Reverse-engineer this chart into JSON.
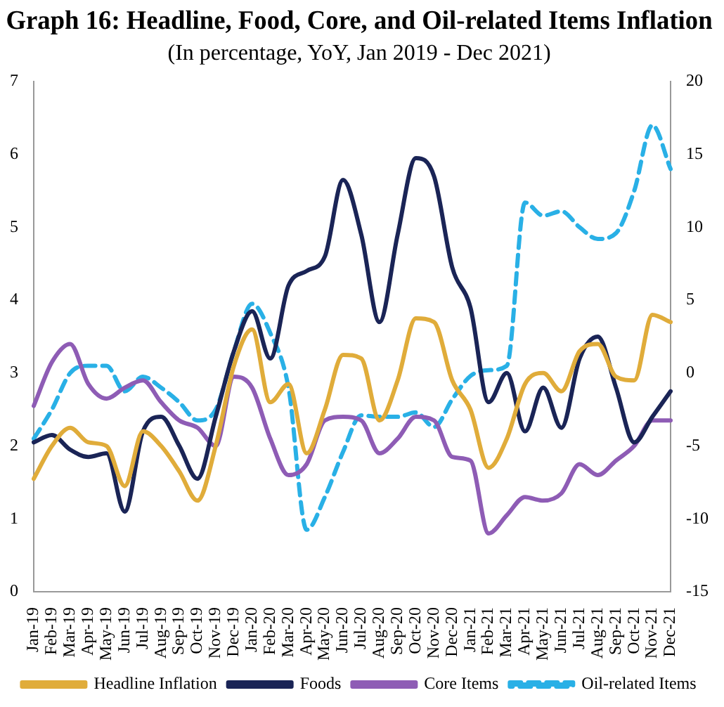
{
  "chart_data": {
    "type": "line",
    "title": "Graph 16: Headline, Food, Core, and Oil-related Items Inflation",
    "subtitle": "(In percentage, YoY, Jan 2019 - Dec 2021)",
    "categories": [
      "Jan-19",
      "Feb-19",
      "Mar-19",
      "Apr-19",
      "May-19",
      "Jun-19",
      "Jul-19",
      "Aug-19",
      "Sep-19",
      "Oct-19",
      "Nov-19",
      "Dec-19",
      "Jan-20",
      "Feb-20",
      "Mar-20",
      "Apr-20",
      "May-20",
      "Jun-20",
      "Jul-20",
      "Aug-20",
      "Sep-20",
      "Oct-20",
      "Nov-20",
      "Dec-20",
      "Jan-21",
      "Feb-21",
      "Mar-21",
      "Apr-21",
      "May-21",
      "Jun-21",
      "Jul-21",
      "Aug-21",
      "Sep-21",
      "Oct-21",
      "Nov-21",
      "Dec-21"
    ],
    "series": [
      {
        "name": "Headline Inflation",
        "color": "#e0ac3a",
        "line_style": "solid",
        "values": [
          1.55,
          2.0,
          2.25,
          2.05,
          2.0,
          1.45,
          2.2,
          2.0,
          1.65,
          1.25,
          2.0,
          3.1,
          3.6,
          2.6,
          2.85,
          1.9,
          2.5,
          3.25,
          3.2,
          2.35,
          2.9,
          3.75,
          3.7,
          2.9,
          2.5,
          1.7,
          2.1,
          2.85,
          3.0,
          2.75,
          3.3,
          3.4,
          2.95,
          2.9,
          3.8,
          3.7
        ]
      },
      {
        "name": "Foods",
        "color": "#1a2456",
        "line_style": "solid",
        "values": [
          2.05,
          2.15,
          1.95,
          1.85,
          1.9,
          1.1,
          2.2,
          2.4,
          2.0,
          1.55,
          2.4,
          3.3,
          3.85,
          3.2,
          4.2,
          4.4,
          4.6,
          5.65,
          4.9,
          3.7,
          4.9,
          5.95,
          5.7,
          4.45,
          3.9,
          2.6,
          3.0,
          2.2,
          2.8,
          2.25,
          3.2,
          3.5,
          2.8,
          2.05,
          2.4,
          2.75
        ]
      },
      {
        "name": "Core Items",
        "color": "#8e5cb5",
        "line_style": "solid",
        "values": [
          2.55,
          3.15,
          3.4,
          2.85,
          2.65,
          2.8,
          2.9,
          2.6,
          2.35,
          2.25,
          2.0,
          2.95,
          2.8,
          2.1,
          1.6,
          1.75,
          2.35,
          2.4,
          2.35,
          1.9,
          2.1,
          2.4,
          2.35,
          1.85,
          1.8,
          0.8,
          1.05,
          1.3,
          1.25,
          1.35,
          1.75,
          1.6,
          1.8,
          2.0,
          2.35,
          2.35
        ]
      },
      {
        "name": "Oil-related Items",
        "color": "#29b0e6",
        "line_style": "dashed",
        "axis": "y2",
        "values": [
          -4.5,
          -2.5,
          0,
          0.5,
          0.5,
          -1.25,
          -0.25,
          -1,
          -2,
          -3.25,
          -2.5,
          1.5,
          4.75,
          2.75,
          -1,
          -10.75,
          -8.5,
          -5.4,
          -2.9,
          -3,
          -3,
          -2.7,
          -3.7,
          -1.8,
          -0.2,
          0.2,
          0.5,
          11.7,
          10.8,
          11.1,
          10,
          9.2,
          9.6,
          12.5,
          17,
          14
        ]
      }
    ],
    "ylim": [
      0,
      7
    ],
    "yticks": [
      0,
      1,
      2,
      3,
      4,
      5,
      6,
      7
    ],
    "y2lim": [
      -15,
      20
    ],
    "y2ticks": [
      -15,
      -10,
      -5,
      0,
      5,
      10,
      15,
      20
    ],
    "grid": false,
    "legend": "bottom",
    "marker": "none"
  }
}
